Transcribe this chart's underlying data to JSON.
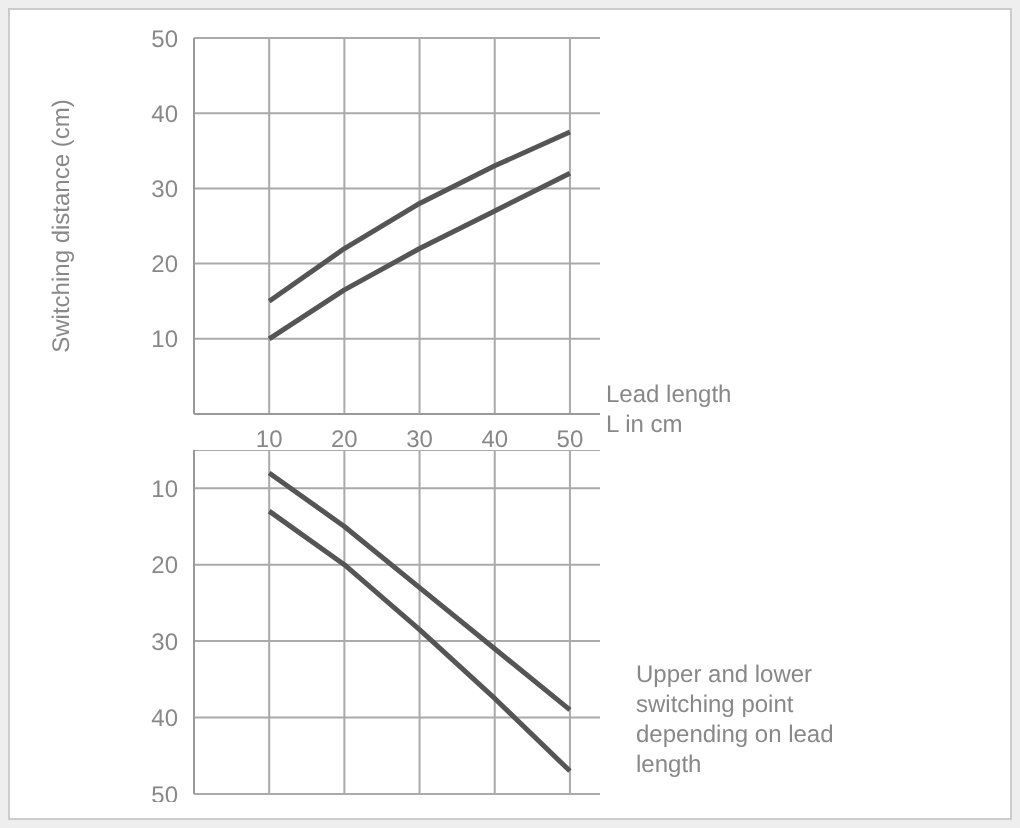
{
  "chart_data": [
    {
      "type": "line",
      "ylabel": "Switching distance (cm)",
      "xlabel": "Lead length\nL in cm",
      "x": [
        10,
        20,
        30,
        40,
        50
      ],
      "xlim": [
        0,
        54
      ],
      "xticks": [
        10,
        20,
        30,
        40,
        50
      ],
      "ylim": [
        0,
        50
      ],
      "yticks": [
        10,
        20,
        30,
        40,
        50
      ],
      "grid": true,
      "series": [
        {
          "color": "#555555",
          "values": [
            15,
            22,
            28,
            33,
            37.5
          ]
        },
        {
          "color": "#555555",
          "values": [
            10,
            16.5,
            22,
            27,
            32
          ]
        }
      ]
    },
    {
      "type": "line",
      "x": [
        10,
        20,
        30,
        40,
        50
      ],
      "xlim": [
        0,
        54
      ],
      "xticks": [
        10,
        20,
        30,
        40,
        50
      ],
      "ylim": [
        50,
        5
      ],
      "yticks": [
        10,
        20,
        30,
        40,
        50
      ],
      "grid": true,
      "tick_labels": "y",
      "annotations": [
        "Upper and lower\nswitching point\ndepending on lead\nlength"
      ],
      "series": [
        {
          "color": "#555555",
          "values": [
            8,
            15,
            23,
            31,
            39
          ]
        },
        {
          "color": "#555555",
          "values": [
            13,
            20,
            28.5,
            37.5,
            47
          ]
        }
      ]
    }
  ]
}
